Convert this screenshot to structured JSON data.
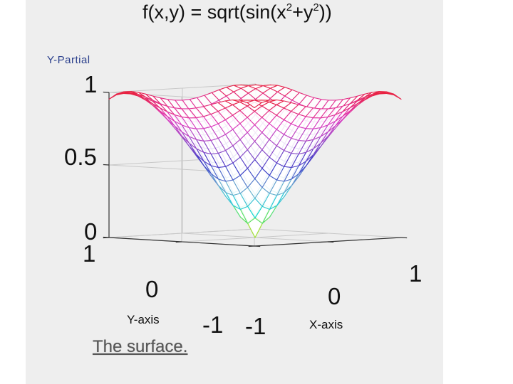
{
  "chart_data": {
    "type": "surface",
    "title": {
      "prefix": "f(x,y) = sqrt(sin(x",
      "exp1": "2",
      "mid": "+y",
      "exp2": "2",
      "suffix": "))"
    },
    "expression": "sqrt(sin(x^2+y^2))",
    "xlabel": "X-axis",
    "ylabel": "Y-axis",
    "zlabel": "Y-Partial",
    "xlim": [
      -1,
      1
    ],
    "ylim": [
      -1,
      1
    ],
    "zlim": [
      0,
      1
    ],
    "xticks": [
      "-1",
      "0",
      "1"
    ],
    "yticks": [
      "-1",
      "0",
      "1"
    ],
    "zticks": [
      "0",
      "0.5",
      "1"
    ],
    "grid": true,
    "mesh": true,
    "colormap": [
      "#00d8d8",
      "#6fb3d0",
      "#3c3cc8",
      "#a050c8",
      "#e040c0",
      "#e8203c"
    ],
    "apex_colormap": [
      "#e8e000",
      "#40e080"
    ]
  },
  "caption": "The surface."
}
